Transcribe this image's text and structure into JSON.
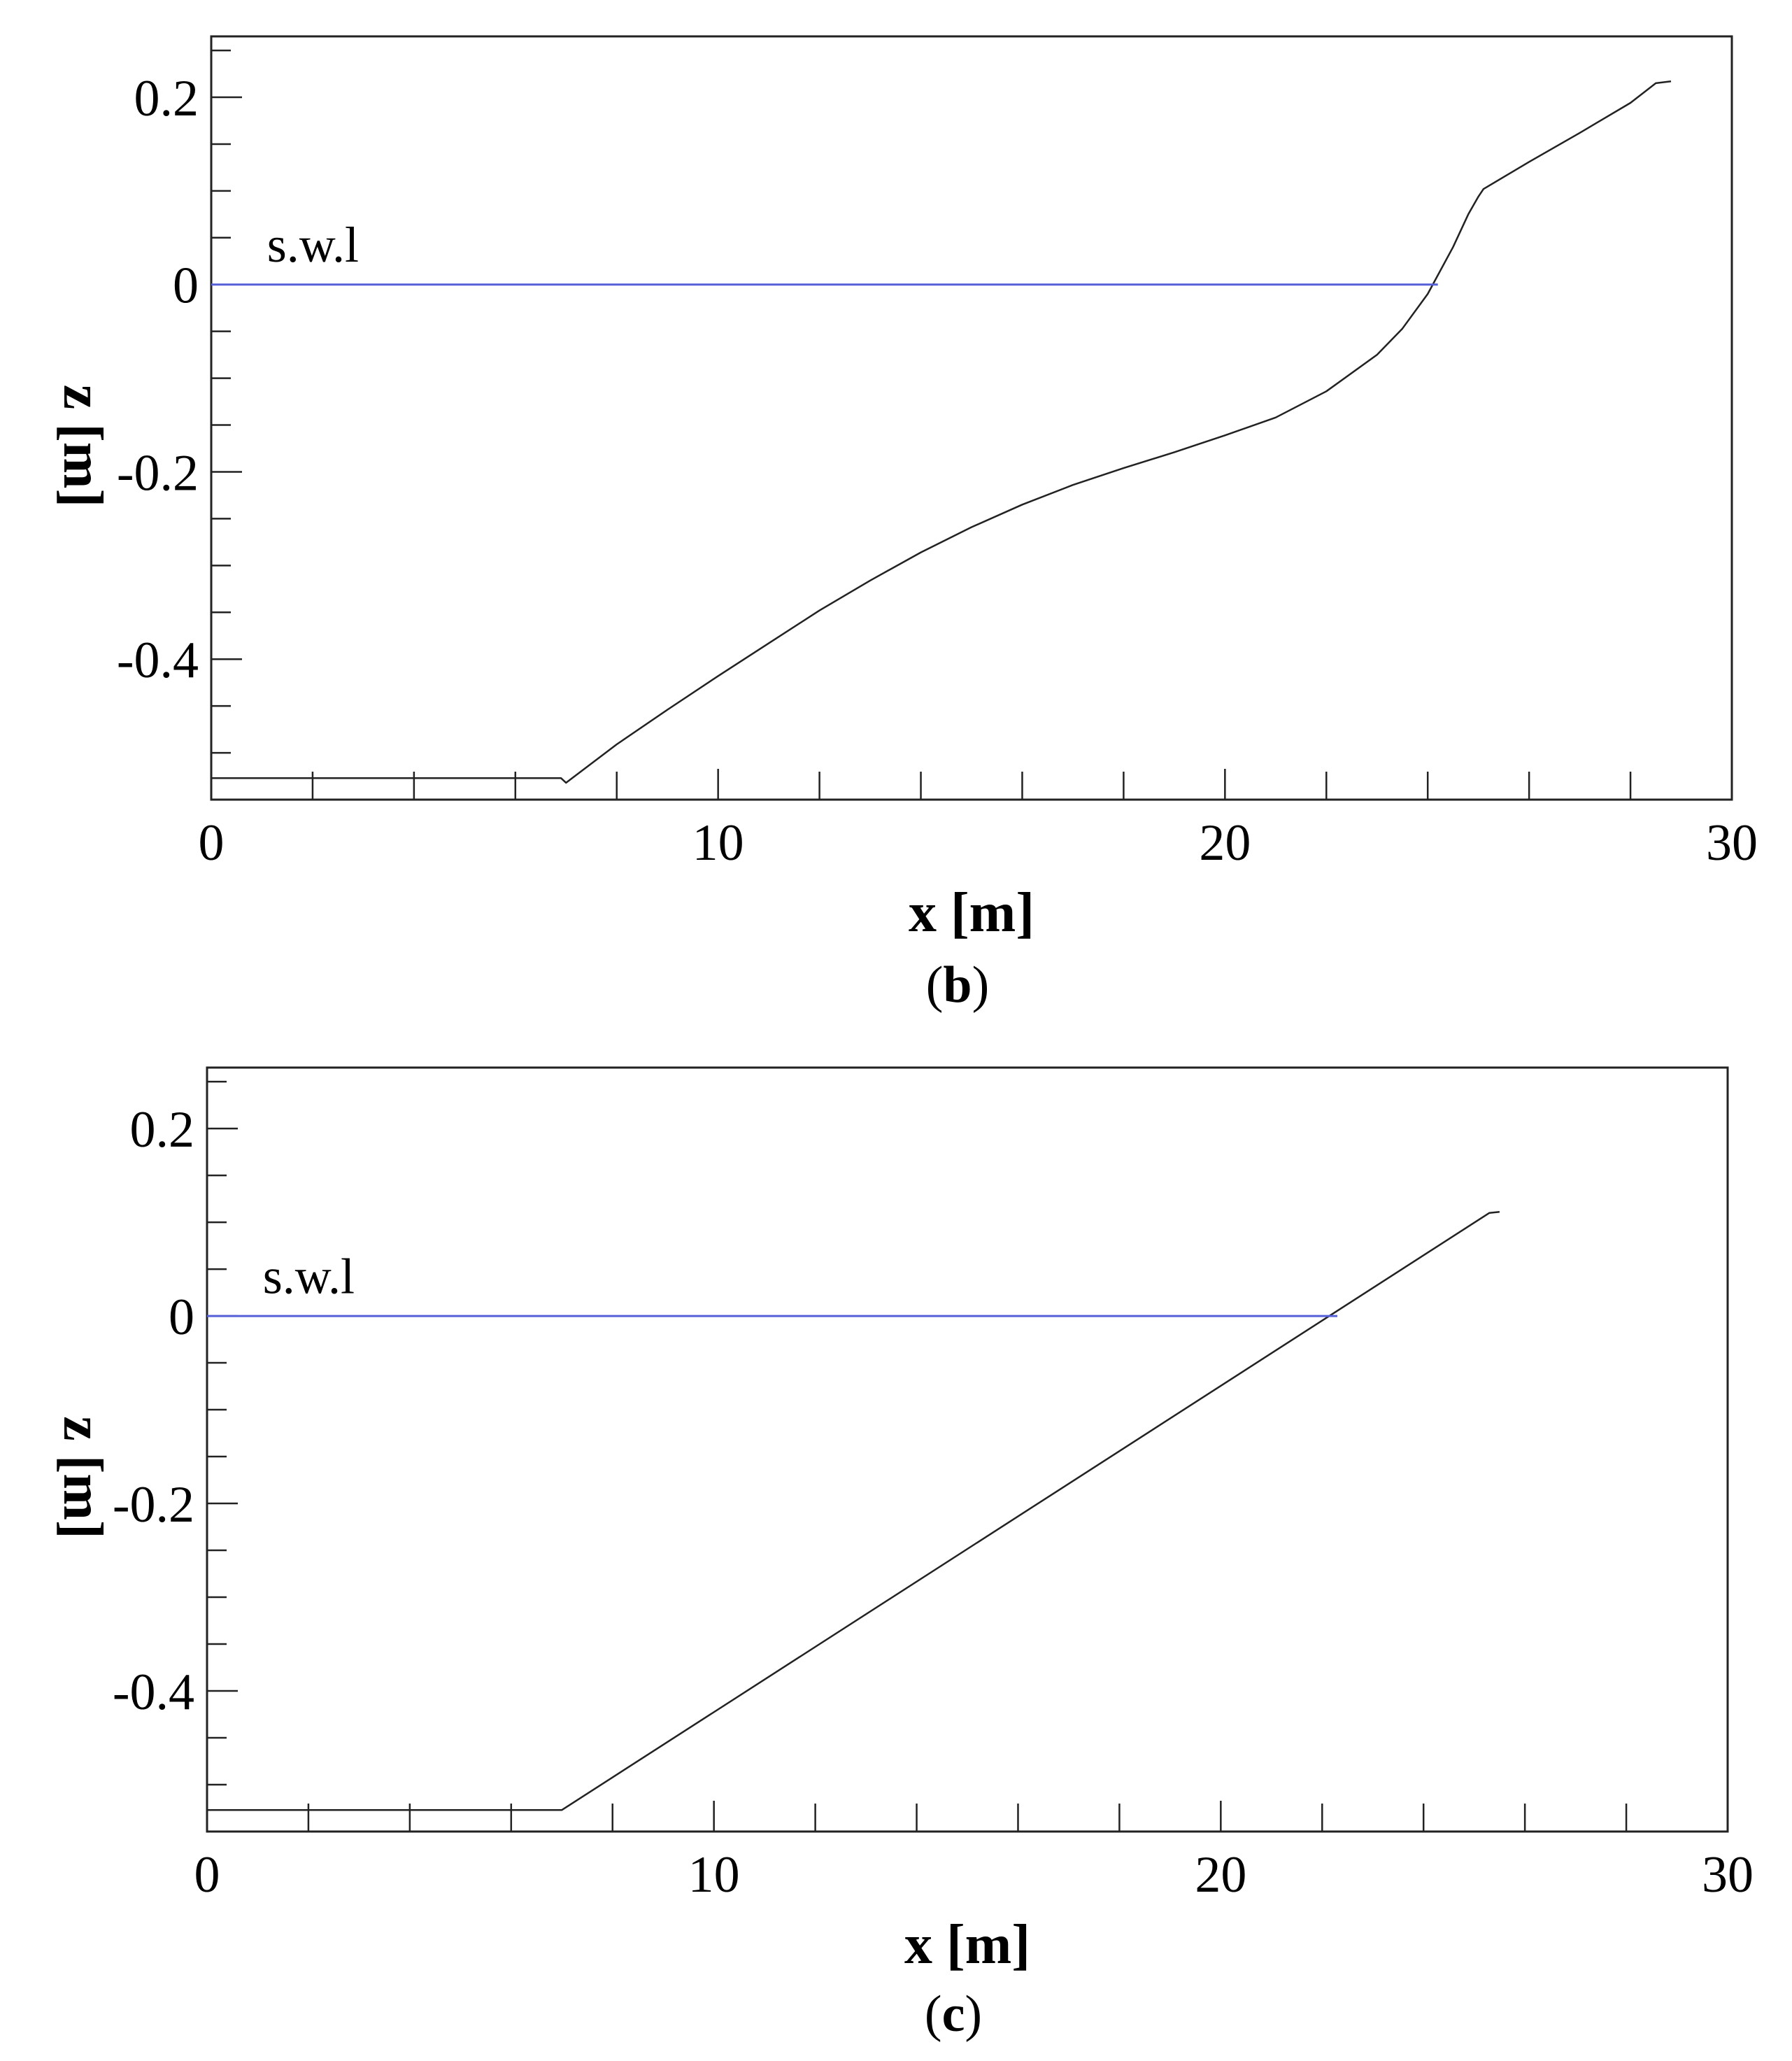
{
  "colors": {
    "profile": "#222222",
    "swl": "#5560d8",
    "frame": "#222222"
  },
  "chart_data": [
    {
      "type": "line",
      "panel_label": "b",
      "xlabel": "x [m]",
      "ylabel": "z [m]",
      "xlim": [
        0,
        30
      ],
      "ylim": [
        -0.55,
        0.265
      ],
      "x_ticks": [
        0,
        10,
        20,
        30
      ],
      "y_ticks": [
        0.2,
        0,
        -0.2,
        -0.4
      ],
      "x_minor_step": 2,
      "y_minor_step": 0.05,
      "grid": false,
      "annotations": [
        {
          "text": "s.w.l",
          "x": 1.1,
          "y": 0.02
        }
      ],
      "series": [
        {
          "role": "bottom-profile",
          "x": [
            0,
            6.9,
            7.0,
            8,
            9,
            10,
            11,
            12,
            13,
            14,
            15,
            16,
            17,
            18,
            19,
            20,
            21,
            22,
            23,
            23.5,
            24,
            24.5,
            24.8,
            25.0,
            25.1,
            26,
            27,
            28,
            28.5,
            28.8
          ],
          "y": [
            -0.527,
            -0.527,
            -0.532,
            -0.491,
            -0.454,
            -0.418,
            -0.383,
            -0.348,
            -0.316,
            -0.286,
            -0.259,
            -0.235,
            -0.214,
            -0.196,
            -0.179,
            -0.161,
            -0.142,
            -0.114,
            -0.075,
            -0.047,
            -0.01,
            0.04,
            0.075,
            0.094,
            0.102,
            0.131,
            0.162,
            0.194,
            0.215,
            0.217
          ]
        },
        {
          "role": "still-water-level",
          "x": [
            0,
            24.2
          ],
          "y": [
            0,
            0
          ]
        }
      ]
    },
    {
      "type": "line",
      "panel_label": "c",
      "xlabel": "x [m]",
      "ylabel": "z [m]",
      "xlim": [
        0,
        30
      ],
      "ylim": [
        -0.55,
        0.265
      ],
      "x_ticks": [
        0,
        10,
        20,
        30
      ],
      "y_ticks": [
        0.2,
        0,
        -0.2,
        -0.4
      ],
      "x_minor_step": 2,
      "y_minor_step": 0.05,
      "grid": false,
      "annotations": [
        {
          "text": "s.w.l",
          "x": 1.1,
          "y": 0.02
        }
      ],
      "series": [
        {
          "role": "bottom-profile",
          "x": [
            0,
            7.0,
            25.3,
            25.5
          ],
          "y": [
            -0.527,
            -0.527,
            0.11,
            0.111
          ]
        },
        {
          "role": "still-water-level",
          "x": [
            0,
            22.3
          ],
          "y": [
            0,
            0
          ]
        }
      ]
    }
  ]
}
